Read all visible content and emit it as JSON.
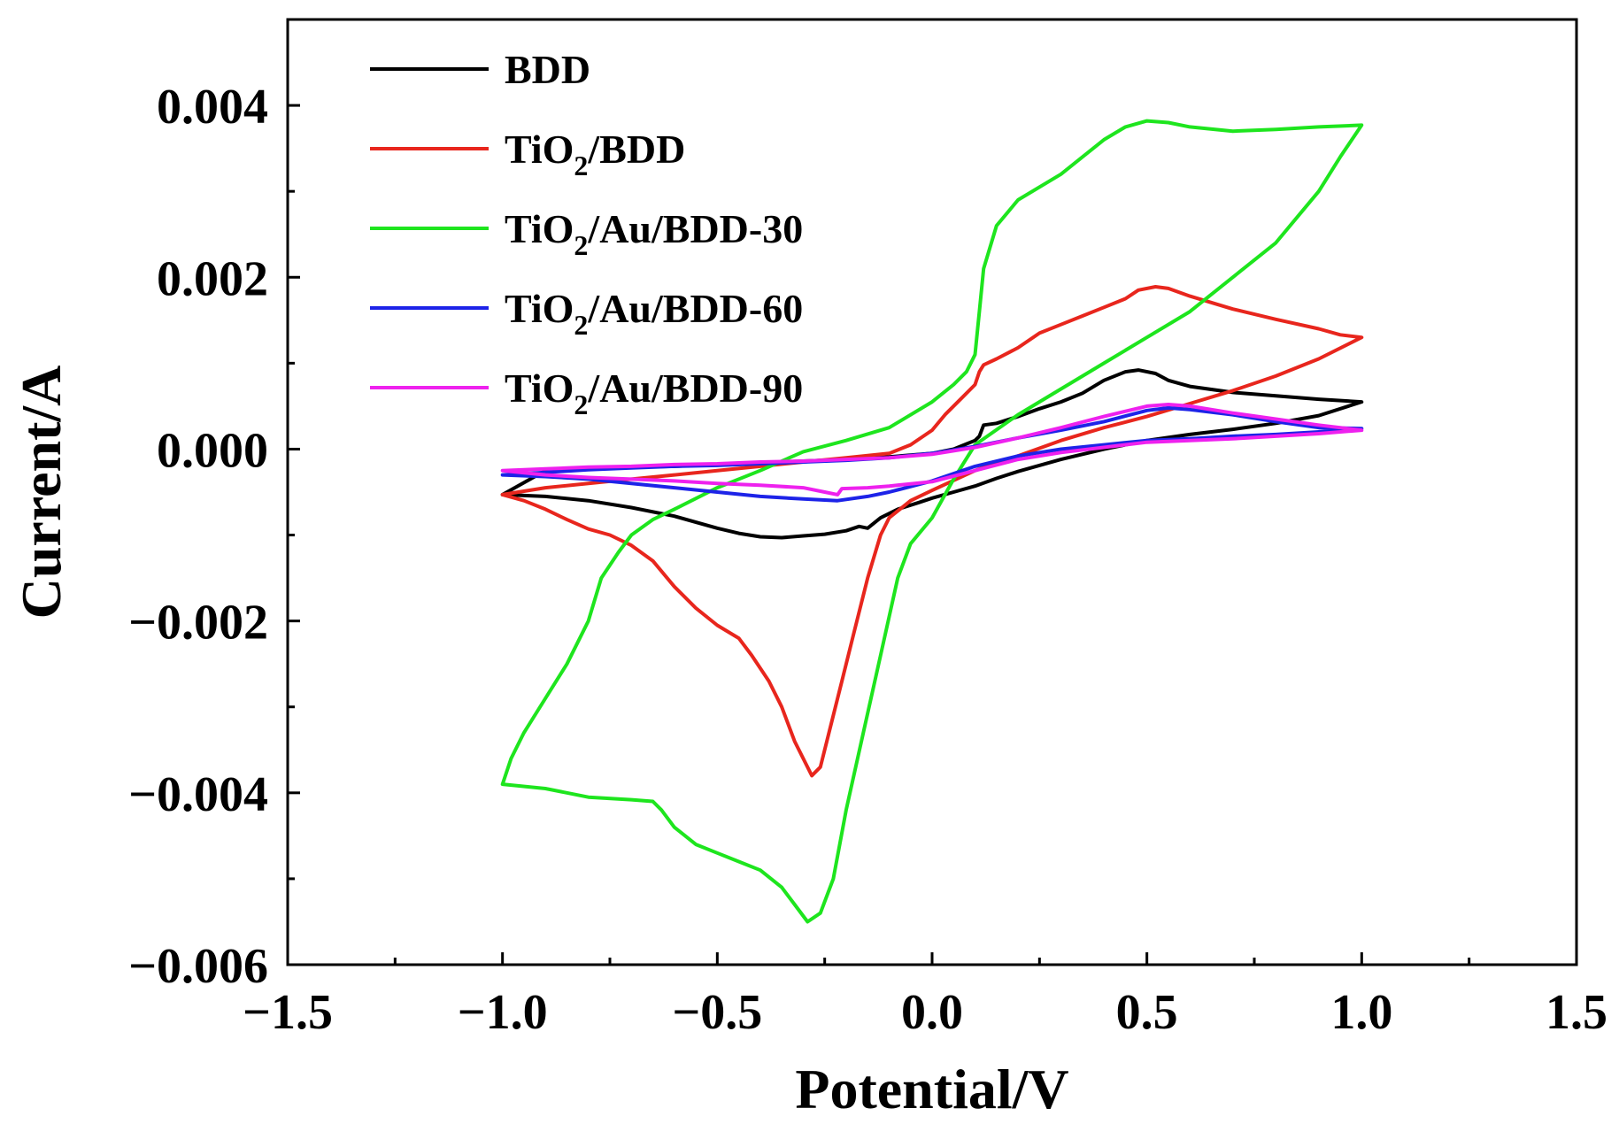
{
  "chart_data": {
    "type": "line",
    "title": "",
    "xlabel": "Potential/V",
    "ylabel": "Current/A",
    "xlim": [
      -1.5,
      1.5
    ],
    "ylim": [
      -0.006,
      0.005
    ],
    "xticks": [
      -1.5,
      -1.0,
      -0.5,
      0.0,
      0.5,
      1.0,
      1.5
    ],
    "xtick_labels": [
      "−1.5",
      "−1.0",
      "−0.5",
      "0.0",
      "0.5",
      "1.0",
      "1.5"
    ],
    "yticks": [
      -0.006,
      -0.004,
      -0.002,
      0.0,
      0.002,
      0.004
    ],
    "ytick_labels": [
      "−0.006",
      "−0.004",
      "−0.002",
      "0.000",
      "0.002",
      "0.004"
    ],
    "grid": false,
    "legend_position": "top-left",
    "series": [
      {
        "name": "BDD",
        "legend": {
          "pre": "BDD",
          "sub": "",
          "post": ""
        },
        "color": "#000000",
        "points": [
          [
            -1.0,
            -0.00053
          ],
          [
            -0.9,
            -0.00055
          ],
          [
            -0.8,
            -0.0006
          ],
          [
            -0.7,
            -0.00068
          ],
          [
            -0.6,
            -0.00078
          ],
          [
            -0.5,
            -0.00092
          ],
          [
            -0.45,
            -0.00098
          ],
          [
            -0.4,
            -0.00102
          ],
          [
            -0.35,
            -0.00103
          ],
          [
            -0.3,
            -0.00101
          ],
          [
            -0.25,
            -0.00099
          ],
          [
            -0.2,
            -0.00095
          ],
          [
            -0.17,
            -0.0009
          ],
          [
            -0.15,
            -0.00092
          ],
          [
            -0.12,
            -0.0008
          ],
          [
            -0.08,
            -0.0007
          ],
          [
            -0.03,
            -0.00062
          ],
          [
            0.0,
            -0.00057
          ],
          [
            0.05,
            -0.0005
          ],
          [
            0.1,
            -0.00043
          ],
          [
            0.15,
            -0.00034
          ],
          [
            0.2,
            -0.00026
          ],
          [
            0.3,
            -0.00012
          ],
          [
            0.4,
            0.0
          ],
          [
            0.5,
            0.0001
          ],
          [
            0.6,
            0.00017
          ],
          [
            0.7,
            0.00023
          ],
          [
            0.8,
            0.0003
          ],
          [
            0.9,
            0.00039
          ],
          [
            1.0,
            0.00055
          ],
          [
            0.9,
            0.00058
          ],
          [
            0.8,
            0.00062
          ],
          [
            0.7,
            0.00066
          ],
          [
            0.6,
            0.00073
          ],
          [
            0.55,
            0.0008
          ],
          [
            0.52,
            0.00088
          ],
          [
            0.48,
            0.00092
          ],
          [
            0.45,
            0.0009
          ],
          [
            0.4,
            0.0008
          ],
          [
            0.35,
            0.00065
          ],
          [
            0.3,
            0.00055
          ],
          [
            0.25,
            0.00047
          ],
          [
            0.2,
            0.00038
          ],
          [
            0.15,
            0.0003
          ],
          [
            0.12,
            0.00028
          ],
          [
            0.11,
            0.00015
          ],
          [
            0.1,
            0.0001
          ],
          [
            0.05,
            0.0
          ],
          [
            0.0,
            -5e-05
          ],
          [
            -0.1,
            -9e-05
          ],
          [
            -0.2,
            -0.00012
          ],
          [
            -0.3,
            -0.00014
          ],
          [
            -0.4,
            -0.00016
          ],
          [
            -0.5,
            -0.00018
          ],
          [
            -0.6,
            -0.0002
          ],
          [
            -0.7,
            -0.00021
          ],
          [
            -0.8,
            -0.00022
          ],
          [
            -0.9,
            -0.00025
          ],
          [
            -1.0,
            -0.00053
          ]
        ]
      },
      {
        "name": "TiO2/BDD",
        "legend": {
          "pre": "TiO",
          "sub": "2",
          "post": "/BDD"
        },
        "color": "#e8261d",
        "points": [
          [
            -1.0,
            -0.00053
          ],
          [
            -0.95,
            -0.0006
          ],
          [
            -0.9,
            -0.0007
          ],
          [
            -0.85,
            -0.00082
          ],
          [
            -0.8,
            -0.00093
          ],
          [
            -0.75,
            -0.001
          ],
          [
            -0.7,
            -0.00112
          ],
          [
            -0.65,
            -0.0013
          ],
          [
            -0.6,
            -0.0016
          ],
          [
            -0.55,
            -0.00185
          ],
          [
            -0.5,
            -0.00205
          ],
          [
            -0.45,
            -0.0022
          ],
          [
            -0.42,
            -0.0024
          ],
          [
            -0.38,
            -0.0027
          ],
          [
            -0.35,
            -0.003
          ],
          [
            -0.32,
            -0.0034
          ],
          [
            -0.3,
            -0.0036
          ],
          [
            -0.28,
            -0.0038
          ],
          [
            -0.26,
            -0.0037
          ],
          [
            -0.24,
            -0.0033
          ],
          [
            -0.21,
            -0.0027
          ],
          [
            -0.18,
            -0.0021
          ],
          [
            -0.15,
            -0.0015
          ],
          [
            -0.12,
            -0.001
          ],
          [
            -0.1,
            -0.0008
          ],
          [
            -0.05,
            -0.0006
          ],
          [
            0.0,
            -0.00048
          ],
          [
            0.1,
            -0.00025
          ],
          [
            0.2,
            -8e-05
          ],
          [
            0.3,
            0.0001
          ],
          [
            0.4,
            0.00025
          ],
          [
            0.5,
            0.00038
          ],
          [
            0.6,
            0.00053
          ],
          [
            0.7,
            0.00068
          ],
          [
            0.8,
            0.00085
          ],
          [
            0.9,
            0.00105
          ],
          [
            1.0,
            0.0013
          ],
          [
            0.95,
            0.00133
          ],
          [
            0.9,
            0.0014
          ],
          [
            0.8,
            0.00151
          ],
          [
            0.7,
            0.00163
          ],
          [
            0.6,
            0.00178
          ],
          [
            0.55,
            0.00187
          ],
          [
            0.52,
            0.00189
          ],
          [
            0.48,
            0.00185
          ],
          [
            0.45,
            0.00175
          ],
          [
            0.4,
            0.00165
          ],
          [
            0.35,
            0.00155
          ],
          [
            0.3,
            0.00145
          ],
          [
            0.25,
            0.00135
          ],
          [
            0.2,
            0.00118
          ],
          [
            0.15,
            0.00105
          ],
          [
            0.12,
            0.00098
          ],
          [
            0.11,
            0.0009
          ],
          [
            0.1,
            0.00075
          ],
          [
            0.07,
            0.0006
          ],
          [
            0.03,
            0.0004
          ],
          [
            0.0,
            0.00022
          ],
          [
            -0.05,
            5e-05
          ],
          [
            -0.1,
            -5e-05
          ],
          [
            -0.2,
            -0.0001
          ],
          [
            -0.3,
            -0.00015
          ],
          [
            -0.4,
            -0.0002
          ],
          [
            -0.5,
            -0.00025
          ],
          [
            -0.6,
            -0.0003
          ],
          [
            -0.7,
            -0.00035
          ],
          [
            -0.8,
            -0.0004
          ],
          [
            -0.9,
            -0.00045
          ],
          [
            -1.0,
            -0.00053
          ]
        ]
      },
      {
        "name": "TiO2/Au/BDD-30",
        "legend": {
          "pre": "TiO",
          "sub": "2",
          "post": "/Au/BDD-30"
        },
        "color": "#1ee51e",
        "points": [
          [
            -1.0,
            -0.0039
          ],
          [
            -0.98,
            -0.0036
          ],
          [
            -0.95,
            -0.0033
          ],
          [
            -0.9,
            -0.0029
          ],
          [
            -0.85,
            -0.0025
          ],
          [
            -0.8,
            -0.002
          ],
          [
            -0.77,
            -0.0015
          ],
          [
            -0.73,
            -0.0012
          ],
          [
            -0.7,
            -0.001
          ],
          [
            -0.65,
            -0.00082
          ],
          [
            -0.6,
            -0.0007
          ],
          [
            -0.5,
            -0.00045
          ],
          [
            -0.4,
            -0.00025
          ],
          [
            -0.3,
            -3e-05
          ],
          [
            -0.2,
            0.0001
          ],
          [
            -0.1,
            0.00025
          ],
          [
            0.0,
            0.00055
          ],
          [
            0.05,
            0.00075
          ],
          [
            0.08,
            0.0009
          ],
          [
            0.1,
            0.0011
          ],
          [
            0.11,
            0.0016
          ],
          [
            0.12,
            0.0021
          ],
          [
            0.15,
            0.0026
          ],
          [
            0.2,
            0.0029
          ],
          [
            0.3,
            0.0032
          ],
          [
            0.35,
            0.0034
          ],
          [
            0.4,
            0.0036
          ],
          [
            0.45,
            0.00375
          ],
          [
            0.5,
            0.00382
          ],
          [
            0.55,
            0.0038
          ],
          [
            0.6,
            0.00375
          ],
          [
            0.7,
            0.0037
          ],
          [
            0.8,
            0.00372
          ],
          [
            0.9,
            0.00375
          ],
          [
            1.0,
            0.00377
          ],
          [
            0.95,
            0.0034
          ],
          [
            0.9,
            0.003
          ],
          [
            0.85,
            0.0027
          ],
          [
            0.8,
            0.0024
          ],
          [
            0.7,
            0.002
          ],
          [
            0.6,
            0.0016
          ],
          [
            0.5,
            0.0013
          ],
          [
            0.4,
            0.001
          ],
          [
            0.3,
            0.0007
          ],
          [
            0.2,
            0.0004
          ],
          [
            0.1,
            5e-05
          ],
          [
            0.05,
            -0.00035
          ],
          [
            0.0,
            -0.0008
          ],
          [
            -0.05,
            -0.0011
          ],
          [
            -0.08,
            -0.0015
          ],
          [
            -0.12,
            -0.0024
          ],
          [
            -0.16,
            -0.0033
          ],
          [
            -0.2,
            -0.0042
          ],
          [
            -0.23,
            -0.005
          ],
          [
            -0.26,
            -0.0054
          ],
          [
            -0.29,
            -0.0055
          ],
          [
            -0.32,
            -0.0053
          ],
          [
            -0.35,
            -0.0051
          ],
          [
            -0.4,
            -0.0049
          ],
          [
            -0.45,
            -0.0048
          ],
          [
            -0.5,
            -0.0047
          ],
          [
            -0.55,
            -0.0046
          ],
          [
            -0.6,
            -0.0044
          ],
          [
            -0.63,
            -0.0042
          ],
          [
            -0.65,
            -0.0041
          ],
          [
            -0.7,
            -0.00408
          ],
          [
            -0.8,
            -0.00405
          ],
          [
            -0.9,
            -0.00395
          ],
          [
            -1.0,
            -0.0039
          ]
        ]
      },
      {
        "name": "TiO2/Au/BDD-60",
        "legend": {
          "pre": "TiO",
          "sub": "2",
          "post": "/Au/BDD-60"
        },
        "color": "#1d23e8",
        "points": [
          [
            -1.0,
            -0.0003
          ],
          [
            -0.9,
            -0.00032
          ],
          [
            -0.8,
            -0.00035
          ],
          [
            -0.7,
            -0.0004
          ],
          [
            -0.6,
            -0.00045
          ],
          [
            -0.5,
            -0.0005
          ],
          [
            -0.4,
            -0.00055
          ],
          [
            -0.3,
            -0.00058
          ],
          [
            -0.22,
            -0.0006
          ],
          [
            -0.15,
            -0.00055
          ],
          [
            -0.1,
            -0.0005
          ],
          [
            0.0,
            -0.00037
          ],
          [
            0.1,
            -0.0002
          ],
          [
            0.2,
            -8e-05
          ],
          [
            0.3,
            0.0
          ],
          [
            0.4,
            5e-05
          ],
          [
            0.5,
            0.0001
          ],
          [
            0.6,
            0.00012
          ],
          [
            0.7,
            0.00015
          ],
          [
            0.8,
            0.00017
          ],
          [
            0.9,
            0.0002
          ],
          [
            1.0,
            0.00024
          ],
          [
            0.9,
            0.00025
          ],
          [
            0.8,
            0.00032
          ],
          [
            0.7,
            0.0004
          ],
          [
            0.6,
            0.00046
          ],
          [
            0.55,
            0.00048
          ],
          [
            0.5,
            0.00045
          ],
          [
            0.4,
            0.00032
          ],
          [
            0.3,
            0.00022
          ],
          [
            0.2,
            0.00013
          ],
          [
            0.1,
            3e-05
          ],
          [
            0.0,
            -5e-05
          ],
          [
            -0.1,
            -0.0001
          ],
          [
            -0.2,
            -0.00013
          ],
          [
            -0.3,
            -0.00015
          ],
          [
            -0.4,
            -0.00017
          ],
          [
            -0.5,
            -0.00019
          ],
          [
            -0.6,
            -0.0002
          ],
          [
            -0.7,
            -0.00022
          ],
          [
            -0.8,
            -0.00024
          ],
          [
            -0.9,
            -0.00027
          ],
          [
            -1.0,
            -0.0003
          ]
        ]
      },
      {
        "name": "TiO2/Au/BDD-90",
        "legend": {
          "pre": "TiO",
          "sub": "2",
          "post": "/Au/BDD-90"
        },
        "color": "#ee21ee",
        "points": [
          [
            -1.0,
            -0.00025
          ],
          [
            -0.9,
            -0.0003
          ],
          [
            -0.8,
            -0.00033
          ],
          [
            -0.7,
            -0.00035
          ],
          [
            -0.6,
            -0.00037
          ],
          [
            -0.5,
            -0.0004
          ],
          [
            -0.4,
            -0.00042
          ],
          [
            -0.3,
            -0.00045
          ],
          [
            -0.25,
            -0.0005
          ],
          [
            -0.22,
            -0.00053
          ],
          [
            -0.21,
            -0.00046
          ],
          [
            -0.15,
            -0.00045
          ],
          [
            -0.1,
            -0.00043
          ],
          [
            0.0,
            -0.00038
          ],
          [
            0.1,
            -0.00025
          ],
          [
            0.2,
            -0.00012
          ],
          [
            0.3,
            -4e-05
          ],
          [
            0.4,
            2e-05
          ],
          [
            0.5,
            8e-05
          ],
          [
            0.6,
            0.0001
          ],
          [
            0.7,
            0.00012
          ],
          [
            0.8,
            0.00015
          ],
          [
            0.9,
            0.00018
          ],
          [
            1.0,
            0.00022
          ],
          [
            0.9,
            0.00028
          ],
          [
            0.8,
            0.00035
          ],
          [
            0.7,
            0.00042
          ],
          [
            0.6,
            0.0005
          ],
          [
            0.55,
            0.00052
          ],
          [
            0.5,
            0.0005
          ],
          [
            0.4,
            0.00038
          ],
          [
            0.3,
            0.00025
          ],
          [
            0.2,
            0.00013
          ],
          [
            0.1,
            2e-05
          ],
          [
            0.0,
            -6e-05
          ],
          [
            -0.1,
            -0.0001
          ],
          [
            -0.2,
            -0.00012
          ],
          [
            -0.3,
            -0.00014
          ],
          [
            -0.4,
            -0.00015
          ],
          [
            -0.5,
            -0.00017
          ],
          [
            -0.6,
            -0.00018
          ],
          [
            -0.7,
            -0.0002
          ],
          [
            -0.8,
            -0.00021
          ],
          [
            -0.9,
            -0.00023
          ],
          [
            -1.0,
            -0.00025
          ]
        ]
      }
    ]
  }
}
